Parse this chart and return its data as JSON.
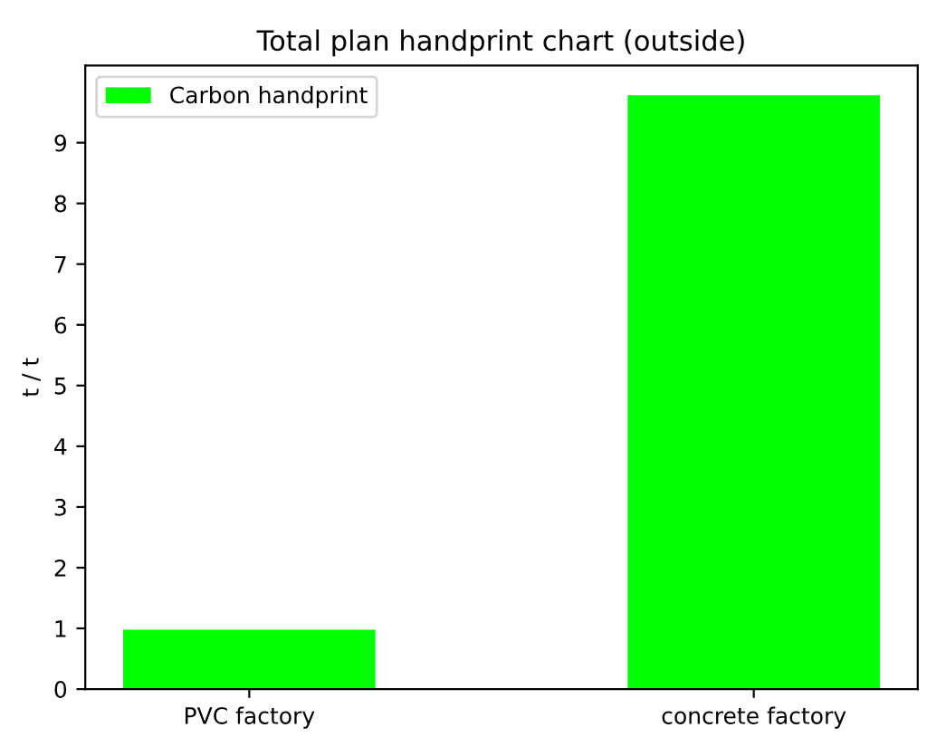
{
  "chart_data": {
    "type": "bar",
    "title": "Total plan handprint chart (outside)",
    "ylabel": "t / t",
    "categories": [
      "PVC factory",
      "concrete factory"
    ],
    "series": [
      {
        "name": "Carbon handprint",
        "color": "#00ff00",
        "values": [
          0.98,
          9.78
        ]
      }
    ],
    "ylim": [
      0,
      10.27
    ],
    "yticks": [
      0,
      1,
      2,
      3,
      4,
      5,
      6,
      7,
      8,
      9
    ],
    "legend": "top left",
    "grid": false
  }
}
